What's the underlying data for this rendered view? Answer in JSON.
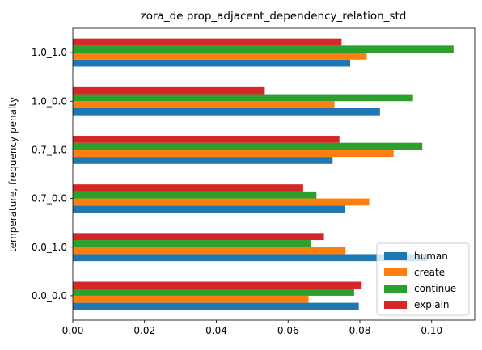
{
  "chart_data": {
    "type": "bar",
    "orientation": "horizontal",
    "title": "zora_de prop_adjacent_dependency_relation_std",
    "ylabel": "temperature, frequency penalty",
    "xlabel": "",
    "categories": [
      "0.0_0.0",
      "0.0_1.0",
      "0.7_0.0",
      "0.7_1.0",
      "1.0_0.0",
      "1.0_1.0"
    ],
    "xlim": [
      0,
      0.112
    ],
    "x_ticks": [
      "0.00",
      "0.02",
      "0.04",
      "0.06",
      "0.08",
      "0.10"
    ],
    "x_tick_values": [
      0,
      0.02,
      0.04,
      0.06,
      0.08,
      0.1
    ],
    "grid": false,
    "legend_position": "lower-right",
    "series": [
      {
        "name": "human",
        "color": "#1f77b4",
        "values": [
          0.0797,
          0.0988,
          0.0758,
          0.0724,
          0.0856,
          0.0773
        ]
      },
      {
        "name": "create",
        "color": "#ff7f0e",
        "values": [
          0.0657,
          0.076,
          0.0826,
          0.0894,
          0.0729,
          0.0819
        ]
      },
      {
        "name": "continue",
        "color": "#2ca02c",
        "values": [
          0.0784,
          0.0664,
          0.0679,
          0.0974,
          0.0948,
          0.1061
        ]
      },
      {
        "name": "explain",
        "color": "#d62728",
        "values": [
          0.0805,
          0.07,
          0.0642,
          0.0743,
          0.0535,
          0.0749
        ]
      }
    ]
  }
}
